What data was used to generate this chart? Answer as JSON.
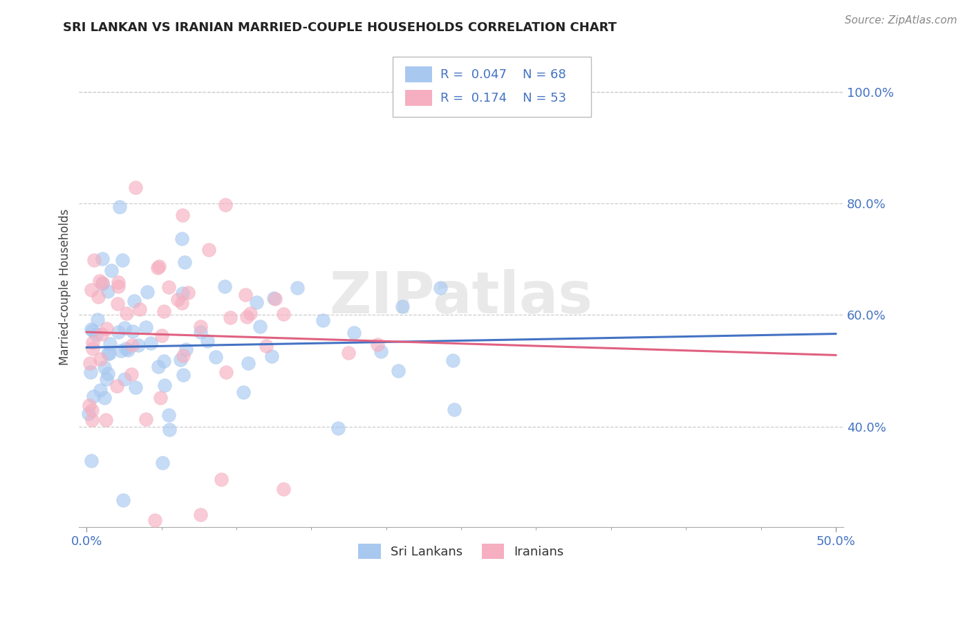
{
  "title": "SRI LANKAN VS IRANIAN MARRIED-COUPLE HOUSEHOLDS CORRELATION CHART",
  "source": "Source: ZipAtlas.com",
  "ylabel": "Married-couple Households",
  "xlim": [
    -0.005,
    0.505
  ],
  "ylim": [
    0.22,
    1.08
  ],
  "xtick_major_labels": [
    "0.0%",
    "50.0%"
  ],
  "xtick_major_vals": [
    0.0,
    0.5
  ],
  "xtick_minor_vals": [
    0.0,
    0.05,
    0.1,
    0.15,
    0.2,
    0.25,
    0.3,
    0.35,
    0.4,
    0.45,
    0.5
  ],
  "ytick_labels": [
    "40.0%",
    "60.0%",
    "80.0%",
    "100.0%"
  ],
  "ytick_vals": [
    0.4,
    0.6,
    0.8,
    1.0
  ],
  "sri_lanka_color": "#a8c8f0",
  "iran_color": "#f5afc0",
  "sri_lanka_line_color": "#4472c4",
  "iran_line_color": "#e06080",
  "sri_lanka_R": 0.047,
  "sri_lanka_N": 68,
  "iran_R": 0.174,
  "iran_N": 53,
  "legend_text_color": "#4472c4",
  "watermark": "ZIPatlas",
  "background_color": "#ffffff",
  "grid_color": "#cccccc",
  "title_color": "#222222",
  "title_fontsize": 13,
  "source_fontsize": 11
}
